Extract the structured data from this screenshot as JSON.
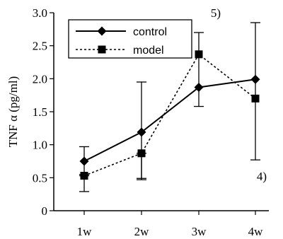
{
  "chart_data": {
    "type": "line",
    "title": "",
    "xlabel": "",
    "ylabel": "TNF α (pg/ml)",
    "categories": [
      "1w",
      "2w",
      "3w",
      "4w"
    ],
    "ylim": [
      0,
      3.0
    ],
    "yticks": [
      "0",
      "0.5",
      "1.0",
      "1.5",
      "2.0",
      "2.5",
      "3.0"
    ],
    "ytick_values": [
      0,
      0.5,
      1.0,
      1.5,
      2.0,
      2.5,
      3.0
    ],
    "grid": false,
    "legend_position": "top-left",
    "series": [
      {
        "name": "control",
        "style": "solid",
        "marker": "diamond",
        "values": [
          0.75,
          1.19,
          1.87,
          1.99
        ],
        "error_low": [
          0.55,
          0.49,
          1.58,
          0.77
        ],
        "error_high": [
          0.97,
          1.95,
          2.7,
          2.85
        ]
      },
      {
        "name": "model",
        "style": "dotted",
        "marker": "square",
        "values": [
          0.53,
          0.87,
          2.37,
          1.7
        ],
        "error_low": [
          0.29,
          0.47,
          2.37,
          1.7
        ],
        "error_high": [
          0.53,
          0.87,
          2.37,
          1.7
        ]
      }
    ],
    "annotations": [
      {
        "text": "5)",
        "x": "3w",
        "y": 3.0
      },
      {
        "text": "4)",
        "x": "4w",
        "y": 0.45
      }
    ]
  }
}
